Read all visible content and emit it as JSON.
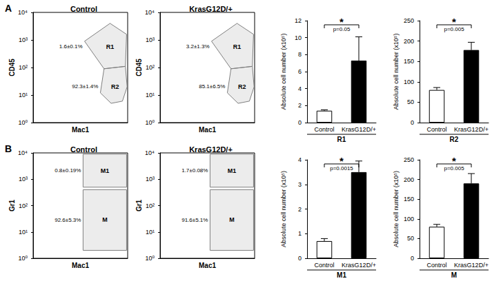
{
  "chart_data": [
    {
      "type": "scatter",
      "panel_label": "A",
      "title": "Control",
      "x_label": "Mac1",
      "y_label": "CD45",
      "log": true,
      "tick_labels": "y",
      "color": "#7f7f7f",
      "xlim": [
        1,
        10000
      ],
      "ylim": [
        1,
        10000
      ],
      "yticks": [
        {
          "value": 1,
          "label": "10⁰"
        },
        {
          "value": 10,
          "label": "10¹"
        },
        {
          "value": 100,
          "label": "10²"
        },
        {
          "value": 1000,
          "label": "10³"
        },
        {
          "value": 10000,
          "label": "10⁴"
        }
      ],
      "gates": [
        {
          "name": "R1",
          "percent": "1.6±0.1%",
          "vertices": [
            [
              150,
              900
            ],
            [
              1800,
              4000
            ],
            [
              9000,
              1600
            ],
            [
              8000,
              110
            ],
            [
              1000,
              90
            ]
          ]
        },
        {
          "name": "R2",
          "percent": "92.3±1.4%",
          "vertices": [
            [
              1000,
              90
            ],
            [
              8000,
              110
            ],
            [
              9500,
              20
            ],
            [
              6000,
              6
            ],
            [
              2000,
              5
            ],
            [
              700,
              12
            ]
          ]
        }
      ]
    },
    {
      "type": "scatter",
      "title": "KrasG12D/+",
      "x_label": "Mac1",
      "y_label": "CD45",
      "log": true,
      "tick_labels": "y",
      "color": "#7f7f7f",
      "xlim": [
        1,
        10000
      ],
      "ylim": [
        1,
        10000
      ],
      "yticks": [
        {
          "value": 1,
          "label": "10⁰"
        },
        {
          "value": 10,
          "label": "10¹"
        },
        {
          "value": 100,
          "label": "10²"
        },
        {
          "value": 1000,
          "label": "10³"
        },
        {
          "value": 10000,
          "label": "10⁴"
        }
      ],
      "gates": [
        {
          "name": "R1",
          "percent": "3.2±1.3%",
          "vertices": [
            [
              150,
              900
            ],
            [
              1800,
              4000
            ],
            [
              9000,
              1600
            ],
            [
              8000,
              110
            ],
            [
              1000,
              90
            ]
          ]
        },
        {
          "name": "R2",
          "percent": "85.1±6.5%",
          "vertices": [
            [
              1000,
              90
            ],
            [
              8000,
              110
            ],
            [
              9500,
              20
            ],
            [
              6000,
              6
            ],
            [
              2000,
              5
            ],
            [
              700,
              12
            ]
          ]
        }
      ]
    },
    {
      "type": "bar",
      "y_label": "Absolute cell number (x10⁵)",
      "x_label": "R1",
      "categories": [
        "Control",
        "KrasG12D/+"
      ],
      "values": [
        1.4,
        7.3
      ],
      "errors": [
        0.1,
        2.8
      ],
      "colors": [
        "#ffffff",
        "#000000"
      ],
      "ylim": [
        0,
        12
      ],
      "yticks": [
        0,
        2,
        4,
        6,
        8,
        10,
        12
      ],
      "p_value": "p=0.05",
      "significance": "*"
    },
    {
      "type": "bar",
      "y_label": "Absolute cell number (x10⁵)",
      "x_label": "R2",
      "categories": [
        "Control",
        "KrasG12D/+"
      ],
      "values": [
        80,
        178
      ],
      "errors": [
        6,
        19
      ],
      "colors": [
        "#ffffff",
        "#000000"
      ],
      "ylim": [
        0,
        250
      ],
      "yticks": [
        0,
        50,
        100,
        150,
        200,
        250
      ],
      "p_value": "p=0.005",
      "significance": "*"
    },
    {
      "type": "scatter",
      "panel_label": "B",
      "title": "Control",
      "x_label": "Mac1",
      "y_label": "Gr1",
      "log": true,
      "tick_labels": "y",
      "color": "#7f7f7f",
      "xlim": [
        1,
        10000
      ],
      "ylim": [
        1,
        10000
      ],
      "yticks": [
        {
          "value": 1,
          "label": "10⁰"
        },
        {
          "value": 10,
          "label": "10¹"
        },
        {
          "value": 100,
          "label": "10²"
        },
        {
          "value": 1000,
          "label": "10³"
        },
        {
          "value": 10000,
          "label": "10⁴"
        }
      ],
      "gates": [
        {
          "name": "M1",
          "percent": "0.8±0.19%",
          "vertices": [
            [
              130,
              500
            ],
            [
              9000,
              500
            ],
            [
              9000,
              9000
            ],
            [
              130,
              9000
            ]
          ]
        },
        {
          "name": "M",
          "percent": "92.6±5.3%",
          "vertices": [
            [
              130,
              2
            ],
            [
              9000,
              2
            ],
            [
              9000,
              400
            ],
            [
              130,
              400
            ]
          ]
        }
      ]
    },
    {
      "type": "scatter",
      "title": "KrasG12D/+",
      "x_label": "Mac1",
      "y_label": "Gr1",
      "log": true,
      "tick_labels": "y",
      "color": "#7f7f7f",
      "xlim": [
        1,
        10000
      ],
      "ylim": [
        1,
        10000
      ],
      "yticks": [
        {
          "value": 1,
          "label": "10⁰"
        },
        {
          "value": 10,
          "label": "10¹"
        },
        {
          "value": 100,
          "label": "10²"
        },
        {
          "value": 1000,
          "label": "10³"
        },
        {
          "value": 10000,
          "label": "10⁴"
        }
      ],
      "gates": [
        {
          "name": "M1",
          "percent": "1.7±0.08%",
          "vertices": [
            [
              130,
              500
            ],
            [
              9000,
              500
            ],
            [
              9000,
              9000
            ],
            [
              130,
              9000
            ]
          ]
        },
        {
          "name": "M",
          "percent": "91.6±5.1%",
          "vertices": [
            [
              130,
              2
            ],
            [
              9000,
              2
            ],
            [
              9000,
              400
            ],
            [
              130,
              400
            ]
          ]
        }
      ]
    },
    {
      "type": "bar",
      "y_label": "Absolute cell number (x10⁵)",
      "x_label": "M1",
      "categories": [
        "Control",
        "KrasG12D/+"
      ],
      "values": [
        0.7,
        3.5
      ],
      "errors": [
        0.1,
        0.45
      ],
      "colors": [
        "#ffffff",
        "#000000"
      ],
      "ylim": [
        0,
        4
      ],
      "yticks": [
        0,
        1,
        2,
        3,
        4
      ],
      "p_value": "p=0.0015",
      "significance": "*"
    },
    {
      "type": "bar",
      "y_label": "Absolute cell number (x10⁵)",
      "x_label": "M",
      "categories": [
        "Control",
        "KrasG12D/+"
      ],
      "values": [
        80,
        190
      ],
      "errors": [
        6,
        25
      ],
      "colors": [
        "#ffffff",
        "#000000"
      ],
      "ylim": [
        0,
        250
      ],
      "yticks": [
        0,
        50,
        100,
        150,
        200,
        250
      ],
      "p_value": "p=0.005",
      "significance": "*"
    }
  ]
}
